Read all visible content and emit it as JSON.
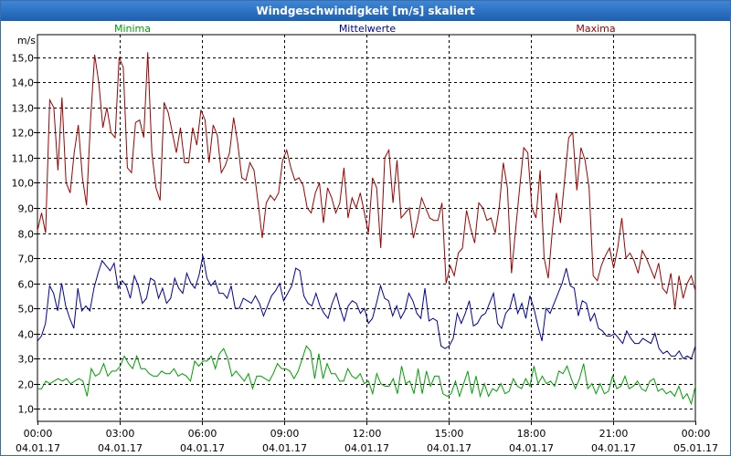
{
  "window": {
    "title": "Windgeschwindigkeit [m/s] skaliert"
  },
  "chart_data": {
    "type": "line",
    "title": "Windgeschwindigkeit [m/s] skaliert",
    "ylabel": "m/s",
    "xlabel": "",
    "ylim": [
      0.5,
      15.9
    ],
    "xlim": [
      0,
      24
    ],
    "grid": true,
    "yticks": [
      1,
      2,
      3,
      4,
      5,
      6,
      7,
      8,
      9,
      10,
      11,
      12,
      13,
      14,
      15
    ],
    "ytick_labels": [
      "1,0",
      "2,0",
      "3,0",
      "4,0",
      "5,0",
      "6,0",
      "7,0",
      "8,0",
      "9,0",
      "10,0",
      "11,0",
      "12,0",
      "13,0",
      "14,0",
      "15,0"
    ],
    "xticks": [
      0,
      3,
      6,
      9,
      12,
      15,
      18,
      21,
      24
    ],
    "xtick_labels": [
      {
        "time": "00:00",
        "date": "04.01.17"
      },
      {
        "time": "03:00",
        "date": "04.01.17"
      },
      {
        "time": "06:00",
        "date": "04.01.17"
      },
      {
        "time": "09:00",
        "date": "04.01.17"
      },
      {
        "time": "12:00",
        "date": "04.01.17"
      },
      {
        "time": "15:00",
        "date": "04.01.17"
      },
      {
        "time": "18:00",
        "date": "04.01.17"
      },
      {
        "time": "21:00",
        "date": "04.01.17"
      },
      {
        "time": "00:00",
        "date": "05.01.17"
      }
    ],
    "series": [
      {
        "name": "Minima",
        "color": "#00a000",
        "legend": "left",
        "values": [
          1.8,
          1.8,
          2.1,
          2.0,
          2.1,
          2.2,
          2.1,
          2.2,
          2.0,
          2.1,
          2.2,
          2.1,
          1.5,
          2.6,
          2.3,
          2.4,
          2.8,
          2.3,
          2.5,
          2.5,
          2.7,
          3.1,
          2.8,
          2.6,
          3.1,
          2.6,
          2.6,
          2.4,
          2.3,
          2.3,
          2.5,
          2.4,
          2.4,
          2.6,
          2.3,
          2.4,
          2.3,
          2.1,
          2.9,
          2.7,
          2.9,
          2.9,
          3.1,
          2.6,
          3.2,
          3.4,
          3.0,
          2.3,
          2.5,
          2.3,
          2.1,
          2.4,
          1.8,
          2.3,
          2.3,
          2.2,
          2.1,
          2.4,
          2.8,
          2.6,
          2.6,
          2.5,
          2.2,
          2.5,
          3.0,
          3.5,
          3.3,
          2.2,
          3.2,
          2.2,
          2.8,
          2.4,
          2.4,
          2.1,
          2.1,
          2.6,
          2.3,
          2.2,
          2.4,
          2.0,
          2.1,
          1.6,
          2.4,
          2.0,
          1.9,
          1.9,
          2.2,
          1.6,
          2.7,
          2.0,
          2.1,
          1.6,
          2.6,
          1.6,
          2.5,
          1.9,
          2.3,
          2.3,
          1.6,
          1.5,
          1.6,
          2.1,
          1.5,
          2.0,
          2.5,
          1.6,
          2.3,
          1.5,
          2.0,
          1.5,
          1.8,
          1.7,
          2.0,
          1.6,
          1.7,
          2.2,
          1.9,
          1.8,
          2.2,
          1.9,
          2.7,
          2.0,
          2.3,
          2.0,
          2.1,
          1.9,
          2.5,
          2.4,
          2.7,
          2.2,
          1.8,
          2.2,
          2.8,
          1.8,
          2.0,
          1.6,
          2.0,
          1.6,
          1.7,
          2.3,
          1.8,
          1.9,
          2.3,
          1.8,
          1.9,
          2.1,
          1.8,
          1.7,
          2.1,
          2.2,
          1.7,
          1.8,
          1.6,
          1.7,
          1.5,
          1.9,
          1.4,
          1.6,
          1.2,
          1.9
        ]
      },
      {
        "name": "Mittelwerte",
        "color": "#0000a0",
        "legend": "center",
        "values": [
          3.7,
          3.9,
          4.4,
          5.9,
          5.6,
          4.9,
          6.0,
          5.1,
          4.6,
          4.2,
          5.8,
          4.9,
          5.1,
          4.9,
          5.8,
          6.4,
          6.9,
          6.7,
          6.5,
          6.8,
          5.8,
          6.1,
          5.9,
          5.4,
          6.3,
          5.9,
          5.2,
          5.4,
          6.2,
          6.1,
          5.4,
          5.8,
          5.2,
          5.4,
          6.2,
          5.8,
          5.6,
          6.4,
          6.0,
          5.8,
          6.3,
          7.1,
          6.2,
          5.9,
          6.1,
          5.6,
          5.6,
          5.4,
          5.9,
          5.0,
          5.0,
          5.4,
          5.3,
          5.2,
          5.5,
          5.2,
          4.7,
          5.1,
          5.5,
          5.7,
          6.0,
          5.3,
          5.6,
          5.9,
          6.6,
          6.5,
          5.5,
          5.2,
          5.1,
          5.6,
          5.1,
          4.8,
          4.6,
          5.2,
          5.6,
          5.0,
          4.5,
          5.1,
          5.3,
          5.2,
          4.8,
          5.0,
          4.4,
          4.6,
          5.2,
          5.9,
          5.4,
          5.3,
          4.7,
          5.1,
          4.6,
          4.9,
          5.6,
          5.3,
          4.8,
          4.6,
          5.8,
          4.5,
          4.6,
          4.5,
          3.5,
          3.4,
          3.5,
          3.8,
          4.8,
          4.4,
          4.8,
          5.3,
          4.3,
          4.4,
          4.7,
          4.8,
          5.2,
          5.6,
          4.4,
          4.2,
          4.8,
          5.0,
          5.6,
          4.8,
          5.2,
          4.6,
          5.5,
          5.0,
          4.3,
          3.7,
          5.0,
          4.8,
          5.2,
          5.6,
          6.0,
          6.6,
          5.9,
          5.8,
          4.7,
          5.3,
          5.2,
          4.5,
          4.8,
          4.2,
          4.1,
          3.9,
          3.9,
          4.0,
          3.8,
          3.6,
          4.1,
          3.8,
          3.6,
          3.6,
          3.8,
          3.7,
          3.6,
          4.0,
          3.4,
          3.2,
          3.3,
          3.1,
          3.1,
          3.3,
          3.0,
          3.1,
          3.0,
          3.5
        ]
      },
      {
        "name": "Maxima",
        "color": "#a00000",
        "legend": "right",
        "values": [
          8.1,
          8.8,
          8.0,
          13.3,
          13.0,
          10.5,
          13.4,
          10.0,
          9.6,
          11.2,
          12.3,
          10.2,
          9.1,
          12.5,
          15.1,
          14.0,
          12.2,
          13.0,
          12.0,
          11.8,
          15.0,
          14.6,
          10.6,
          10.4,
          12.4,
          12.5,
          11.8,
          15.2,
          11.2,
          9.8,
          9.3,
          13.2,
          12.8,
          12.0,
          11.2,
          12.2,
          10.8,
          10.8,
          12.2,
          11.5,
          12.9,
          12.5,
          10.8,
          12.3,
          11.9,
          10.4,
          10.7,
          11.2,
          12.6,
          11.6,
          10.2,
          10.1,
          10.8,
          10.5,
          9.2,
          7.8,
          9.2,
          9.5,
          9.3,
          9.6,
          10.9,
          11.3,
          10.6,
          10.1,
          10.2,
          9.9,
          9.0,
          8.8,
          9.6,
          10.0,
          8.4,
          9.8,
          9.4,
          8.8,
          9.2,
          10.6,
          8.6,
          9.4,
          9.0,
          9.6,
          8.8,
          8.0,
          10.2,
          9.8,
          7.4,
          11.0,
          11.3,
          9.2,
          10.9,
          8.6,
          8.8,
          9.0,
          7.8,
          8.5,
          9.4,
          9.0,
          8.6,
          8.5,
          8.5,
          9.2,
          6.0,
          6.7,
          6.3,
          7.2,
          7.4,
          8.9,
          8.2,
          7.6,
          9.2,
          9.0,
          8.5,
          8.6,
          8.0,
          9.0,
          10.8,
          9.8,
          6.4,
          8.1,
          9.8,
          11.4,
          11.2,
          9.0,
          8.6,
          10.5,
          7.0,
          6.2,
          8.1,
          9.6,
          8.4,
          10.1,
          11.8,
          12.0,
          9.7,
          11.4,
          10.9,
          9.8,
          6.3,
          6.1,
          6.7,
          7.1,
          7.4,
          6.6,
          7.4,
          8.6,
          7.0,
          7.2,
          6.9,
          6.4,
          7.3,
          7.0,
          6.6,
          6.2,
          6.8,
          5.8,
          5.6,
          6.4,
          5.0,
          6.3,
          5.4,
          6.0,
          6.3,
          5.7
        ]
      }
    ]
  }
}
